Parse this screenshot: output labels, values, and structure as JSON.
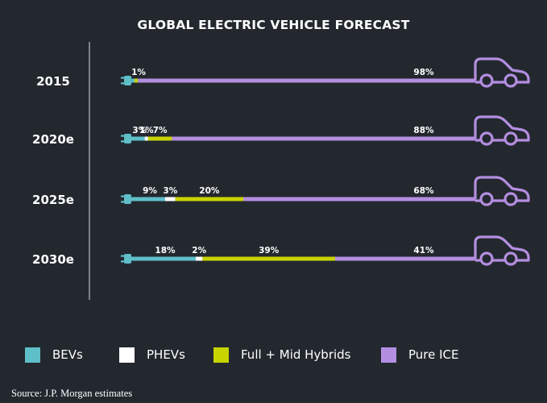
{
  "chart_data": {
    "type": "bar",
    "orientation": "horizontal",
    "stacked": true,
    "title": "GLOBAL ELECTRIC VEHICLE FORECAST",
    "categories": [
      "2015",
      "2020e",
      "2025e",
      "2030e"
    ],
    "series": [
      {
        "name": "BEVs",
        "color": "#5fbfc9",
        "values": [
          null,
          3,
          9,
          18
        ],
        "labels": [
          "",
          "3%",
          "9%",
          "18%"
        ]
      },
      {
        "name": "PHEVs",
        "color": "#ffffff",
        "values": [
          null,
          1,
          3,
          2
        ],
        "labels": [
          "",
          "1%",
          "3%",
          "2%"
        ]
      },
      {
        "name": "Full + Mid Hybrids",
        "color": "#c8d400",
        "values": [
          1,
          7,
          20,
          39
        ],
        "labels": [
          "1%",
          "7%",
          "20%",
          "39%"
        ]
      },
      {
        "name": "Pure ICE",
        "color": "#b48ee0",
        "values": [
          98,
          88,
          68,
          41
        ],
        "labels": [
          "98%",
          "88%",
          "68%",
          "41%"
        ]
      }
    ],
    "legend_position": "bottom",
    "icons": {
      "start": "plug-icon",
      "end": "car-icon"
    }
  },
  "source": "Source: J.P. Morgan estimates"
}
